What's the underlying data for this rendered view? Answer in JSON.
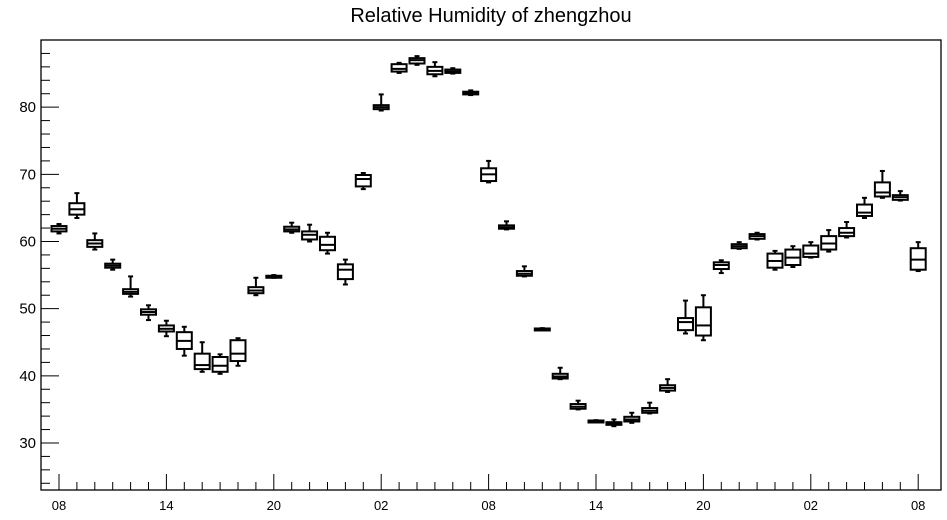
{
  "chart_data": {
    "type": "box",
    "title": "Relative Humidity of zhengzhou",
    "xlabel": "",
    "ylabel": "",
    "ylim": [
      23,
      90
    ],
    "yticks": [
      30,
      40,
      50,
      60,
      70,
      80
    ],
    "x_tick_labels": [
      "08",
      "14",
      "20",
      "02",
      "08",
      "14",
      "20",
      "02",
      "08"
    ],
    "x_tick_steps": [
      0,
      6,
      12,
      18,
      24,
      30,
      36,
      42,
      48
    ],
    "grid": false,
    "boxes": [
      {
        "step": 0,
        "min": 61.2,
        "q1": 61.5,
        "median": 61.9,
        "q3": 62.3,
        "max": 62.6
      },
      {
        "step": 1,
        "min": 63.5,
        "q1": 64.0,
        "median": 64.8,
        "q3": 65.7,
        "max": 67.2
      },
      {
        "step": 2,
        "min": 58.8,
        "q1": 59.2,
        "median": 59.7,
        "q3": 60.2,
        "max": 61.2
      },
      {
        "step": 3,
        "min": 55.8,
        "q1": 56.1,
        "median": 56.4,
        "q3": 56.7,
        "max": 57.3
      },
      {
        "step": 4,
        "min": 51.8,
        "q1": 52.2,
        "median": 52.5,
        "q3": 52.9,
        "max": 54.8
      },
      {
        "step": 5,
        "min": 48.3,
        "q1": 49.1,
        "median": 49.5,
        "q3": 49.9,
        "max": 50.5
      },
      {
        "step": 6,
        "min": 45.9,
        "q1": 46.6,
        "median": 47.0,
        "q3": 47.5,
        "max": 48.2
      },
      {
        "step": 7,
        "min": 43.0,
        "q1": 44.0,
        "median": 45.2,
        "q3": 46.5,
        "max": 47.3
      },
      {
        "step": 8,
        "min": 40.6,
        "q1": 41.0,
        "median": 41.6,
        "q3": 43.3,
        "max": 45.0
      },
      {
        "step": 9,
        "min": 40.3,
        "q1": 40.6,
        "median": 41.5,
        "q3": 42.8,
        "max": 43.2
      },
      {
        "step": 10,
        "min": 41.5,
        "q1": 42.2,
        "median": 43.3,
        "q3": 45.3,
        "max": 45.6
      },
      {
        "step": 11,
        "min": 52.0,
        "q1": 52.3,
        "median": 52.7,
        "q3": 53.2,
        "max": 54.6
      },
      {
        "step": 12,
        "min": 54.6,
        "q1": 54.7,
        "median": 54.8,
        "q3": 54.9,
        "max": 55.0
      },
      {
        "step": 13,
        "min": 61.3,
        "q1": 61.5,
        "median": 61.8,
        "q3": 62.2,
        "max": 62.8
      },
      {
        "step": 14,
        "min": 60.0,
        "q1": 60.3,
        "median": 61.0,
        "q3": 61.5,
        "max": 62.5
      },
      {
        "step": 15,
        "min": 58.2,
        "q1": 58.7,
        "median": 59.5,
        "q3": 60.7,
        "max": 61.3
      },
      {
        "step": 16,
        "min": 53.6,
        "q1": 54.4,
        "median": 55.8,
        "q3": 56.6,
        "max": 57.3
      },
      {
        "step": 17,
        "min": 67.8,
        "q1": 68.2,
        "median": 69.3,
        "q3": 69.9,
        "max": 70.2
      },
      {
        "step": 18,
        "min": 79.5,
        "q1": 79.7,
        "median": 80.0,
        "q3": 80.3,
        "max": 81.9
      },
      {
        "step": 19,
        "min": 85.1,
        "q1": 85.3,
        "median": 85.7,
        "q3": 86.4,
        "max": 86.6
      },
      {
        "step": 20,
        "min": 86.3,
        "q1": 86.5,
        "median": 87.0,
        "q3": 87.3,
        "max": 87.6
      },
      {
        "step": 21,
        "min": 84.6,
        "q1": 84.9,
        "median": 85.4,
        "q3": 86.0,
        "max": 86.7
      },
      {
        "step": 22,
        "min": 85.0,
        "q1": 85.1,
        "median": 85.3,
        "q3": 85.6,
        "max": 85.8
      },
      {
        "step": 23,
        "min": 81.8,
        "q1": 81.9,
        "median": 82.1,
        "q3": 82.3,
        "max": 82.5
      },
      {
        "step": 24,
        "min": 68.8,
        "q1": 69.0,
        "median": 70.0,
        "q3": 70.9,
        "max": 72.0
      },
      {
        "step": 25,
        "min": 61.8,
        "q1": 61.9,
        "median": 62.1,
        "q3": 62.4,
        "max": 63.0
      },
      {
        "step": 26,
        "min": 54.8,
        "q1": 54.9,
        "median": 55.2,
        "q3": 55.6,
        "max": 56.3
      },
      {
        "step": 27,
        "min": 46.9,
        "q1": 46.95,
        "median": 47.0,
        "q3": 47.05,
        "max": 47.1
      },
      {
        "step": 28,
        "min": 39.5,
        "q1": 39.6,
        "median": 39.9,
        "q3": 40.3,
        "max": 41.2
      },
      {
        "step": 29,
        "min": 35.0,
        "q1": 35.1,
        "median": 35.4,
        "q3": 35.8,
        "max": 36.3
      },
      {
        "step": 30,
        "min": 33.2,
        "q1": 33.25,
        "median": 33.3,
        "q3": 33.35,
        "max": 33.4
      },
      {
        "step": 31,
        "min": 32.5,
        "q1": 32.7,
        "median": 32.9,
        "q3": 33.1,
        "max": 33.5
      },
      {
        "step": 32,
        "min": 33.0,
        "q1": 33.2,
        "median": 33.5,
        "q3": 33.9,
        "max": 34.5
      },
      {
        "step": 33,
        "min": 34.4,
        "q1": 34.5,
        "median": 34.8,
        "q3": 35.2,
        "max": 36.0
      },
      {
        "step": 34,
        "min": 37.6,
        "q1": 37.8,
        "median": 38.2,
        "q3": 38.6,
        "max": 39.5
      },
      {
        "step": 35,
        "min": 46.3,
        "q1": 46.8,
        "median": 48.0,
        "q3": 48.6,
        "max": 51.2
      },
      {
        "step": 36,
        "min": 45.3,
        "q1": 46.0,
        "median": 47.5,
        "q3": 50.2,
        "max": 52.0
      },
      {
        "step": 37,
        "min": 55.3,
        "q1": 55.9,
        "median": 56.5,
        "q3": 56.9,
        "max": 57.2
      },
      {
        "step": 38,
        "min": 58.9,
        "q1": 59.0,
        "median": 59.3,
        "q3": 59.6,
        "max": 59.9
      },
      {
        "step": 39,
        "min": 60.3,
        "q1": 60.4,
        "median": 60.8,
        "q3": 61.1,
        "max": 61.3
      },
      {
        "step": 40,
        "min": 55.8,
        "q1": 56.1,
        "median": 57.1,
        "q3": 58.2,
        "max": 58.6
      },
      {
        "step": 41,
        "min": 56.2,
        "q1": 56.5,
        "median": 57.6,
        "q3": 58.8,
        "max": 59.3
      },
      {
        "step": 42,
        "min": 57.6,
        "q1": 57.7,
        "median": 58.2,
        "q3": 59.4,
        "max": 59.9
      },
      {
        "step": 43,
        "min": 58.5,
        "q1": 58.8,
        "median": 59.7,
        "q3": 60.8,
        "max": 61.7
      },
      {
        "step": 44,
        "min": 60.6,
        "q1": 60.8,
        "median": 61.3,
        "q3": 62.0,
        "max": 62.9
      },
      {
        "step": 45,
        "min": 63.5,
        "q1": 63.8,
        "median": 64.3,
        "q3": 65.5,
        "max": 66.5
      },
      {
        "step": 46,
        "min": 66.5,
        "q1": 66.7,
        "median": 67.3,
        "q3": 68.8,
        "max": 70.5
      },
      {
        "step": 47,
        "min": 66.1,
        "q1": 66.2,
        "median": 66.6,
        "q3": 66.9,
        "max": 67.5
      },
      {
        "step": 48,
        "min": 55.6,
        "q1": 55.8,
        "median": 57.3,
        "q3": 59.0,
        "max": 59.9
      }
    ]
  }
}
